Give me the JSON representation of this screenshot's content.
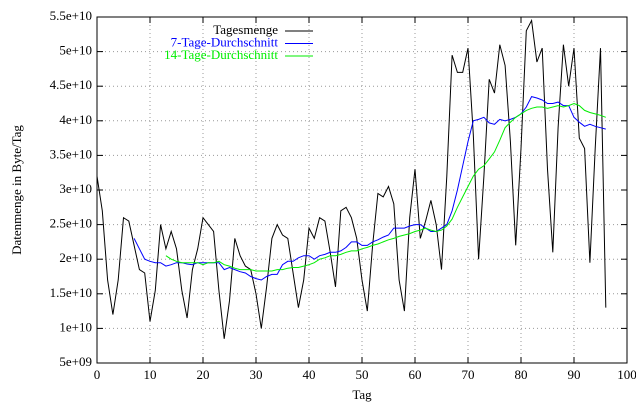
{
  "chart_data": {
    "type": "line",
    "xlabel": "Tag",
    "ylabel": "Datenmenge in Byte/Tag",
    "x": [
      0,
      1,
      2,
      3,
      4,
      5,
      6,
      7,
      8,
      9,
      10,
      11,
      12,
      13,
      14,
      15,
      16,
      17,
      18,
      19,
      20,
      21,
      22,
      23,
      24,
      25,
      26,
      27,
      28,
      29,
      30,
      31,
      32,
      33,
      34,
      35,
      36,
      37,
      38,
      39,
      40,
      41,
      42,
      43,
      44,
      45,
      46,
      47,
      48,
      49,
      50,
      51,
      52,
      53,
      54,
      55,
      56,
      57,
      58,
      59,
      60,
      61,
      62,
      63,
      64,
      65,
      66,
      67,
      68,
      69,
      70,
      71,
      72,
      73,
      74,
      75,
      76,
      77,
      78,
      79,
      80,
      81,
      82,
      83,
      84,
      85,
      86,
      87,
      88,
      89,
      90,
      91,
      92,
      93,
      94,
      95,
      96
    ],
    "series": [
      {
        "name": "Tagesmenge",
        "color": "#000000",
        "values": [
          32000000000.0,
          27000000000.0,
          17000000000.0,
          12000000000.0,
          17000000000.0,
          26000000000.0,
          25500000000.0,
          22000000000.0,
          18500000000.0,
          18000000000.0,
          11000000000.0,
          15500000000.0,
          25000000000.0,
          21500000000.0,
          24000000000.0,
          21500000000.0,
          15500000000.0,
          11500000000.0,
          18500000000.0,
          21500000000.0,
          26000000000.0,
          25000000000.0,
          24000000000.0,
          15500000000.0,
          8500000000.0,
          14000000000.0,
          23000000000.0,
          20500000000.0,
          19000000000.0,
          18500000000.0,
          15000000000.0,
          10000000000.0,
          16000000000.0,
          23000000000.0,
          25000000000.0,
          23500000000.0,
          23000000000.0,
          18000000000.0,
          13000000000.0,
          17000000000.0,
          24500000000.0,
          23000000000.0,
          26000000000.0,
          25500000000.0,
          21000000000.0,
          16000000000.0,
          27000000000.0,
          27500000000.0,
          26000000000.0,
          23000000000.0,
          17000000000.0,
          12500000000.0,
          22000000000.0,
          29500000000.0,
          29000000000.0,
          30500000000.0,
          28000000000.0,
          17000000000.0,
          12500000000.0,
          26000000000.0,
          33000000000.0,
          23000000000.0,
          25500000000.0,
          28500000000.0,
          25000000000.0,
          18500000000.0,
          32000000000.0,
          49500000000.0,
          47000000000.0,
          47000000000.0,
          50500000000.0,
          38000000000.0,
          20000000000.0,
          32000000000.0,
          46000000000.0,
          44000000000.0,
          51000000000.0,
          48000000000.0,
          37000000000.0,
          22000000000.0,
          36000000000.0,
          53000000000.0,
          54500000000.0,
          48500000000.0,
          50500000000.0,
          33000000000.0,
          21000000000.0,
          39000000000.0,
          51000000000.0,
          45000000000.0,
          50500000000.0,
          37500000000.0,
          36000000000.0,
          19500000000.0,
          36000000000.0,
          50500000000.0,
          13000000000.0
        ]
      },
      {
        "name": "7-Tage-Durchschnitt",
        "color": "#0000ff",
        "values": [
          null,
          null,
          null,
          null,
          null,
          null,
          null,
          23000000000.0,
          21500000000.0,
          20000000000.0,
          19700000000.0,
          19500000000.0,
          19500000000.0,
          19000000000.0,
          19200000000.0,
          19500000000.0,
          19500000000.0,
          19300000000.0,
          19200000000.0,
          19500000000.0,
          19500000000.0,
          19500000000.0,
          19500000000.0,
          19500000000.0,
          18500000000.0,
          18800000000.0,
          18500000000.0,
          18200000000.0,
          18000000000.0,
          17500000000.0,
          17200000000.0,
          17000000000.0,
          17500000000.0,
          17800000000.0,
          17800000000.0,
          19200000000.0,
          19700000000.0,
          19700000000.0,
          20200000000.0,
          20500000000.0,
          20500000000.0,
          20000000000.0,
          20500000000.0,
          20700000000.0,
          21000000000.0,
          21000000000.0,
          21200000000.0,
          21700000000.0,
          22500000000.0,
          22500000000.0,
          22000000000.0,
          22000000000.0,
          22500000000.0,
          22800000000.0,
          23200000000.0,
          23500000000.0,
          24500000000.0,
          24500000000.0,
          24500000000.0,
          24800000000.0,
          25000000000.0,
          25000000000.0,
          24500000000.0,
          24000000000.0,
          24000000000.0,
          24500000000.0,
          25000000000.0,
          27000000000.0,
          30000000000.0,
          33500000000.0,
          37000000000.0,
          40000000000.0,
          40200000000.0,
          40500000000.0,
          39700000000.0,
          39500000000.0,
          40200000000.0,
          40000000000.0,
          40200000000.0,
          40500000000.0,
          41000000000.0,
          42000000000.0,
          43500000000.0,
          43300000000.0,
          43000000000.0,
          42500000000.0,
          42500000000.0,
          42700000000.0,
          42200000000.0,
          42200000000.0,
          40500000000.0,
          39800000000.0,
          39200000000.0,
          39500000000.0,
          39200000000.0,
          39000000000.0,
          38800000000.0
        ]
      },
      {
        "name": "14-Tage-Durchschnitt",
        "color": "#00ee00",
        "values": [
          null,
          null,
          null,
          null,
          null,
          null,
          null,
          null,
          null,
          null,
          null,
          null,
          null,
          20500000000.0,
          20000000000.0,
          19700000000.0,
          19500000000.0,
          19500000000.0,
          19500000000.0,
          19500000000.0,
          19200000000.0,
          19500000000.0,
          19500000000.0,
          19700000000.0,
          19200000000.0,
          19000000000.0,
          18700000000.0,
          18500000000.0,
          18500000000.0,
          18500000000.0,
          18300000000.0,
          18300000000.0,
          18300000000.0,
          18300000000.0,
          18500000000.0,
          18500000000.0,
          18700000000.0,
          18800000000.0,
          18800000000.0,
          19000000000.0,
          19200000000.0,
          19500000000.0,
          20000000000.0,
          20200000000.0,
          20500000000.0,
          20500000000.0,
          20700000000.0,
          21000000000.0,
          21200000000.0,
          21200000000.0,
          21500000000.0,
          21700000000.0,
          22000000000.0,
          22200000000.0,
          22500000000.0,
          22800000000.0,
          23000000000.0,
          23300000000.0,
          23500000000.0,
          23700000000.0,
          24000000000.0,
          24200000000.0,
          24500000000.0,
          24200000000.0,
          24000000000.0,
          24200000000.0,
          24800000000.0,
          25800000000.0,
          27500000000.0,
          29000000000.0,
          30500000000.0,
          32000000000.0,
          33000000000.0,
          33500000000.0,
          34500000000.0,
          35500000000.0,
          37200000000.0,
          39000000000.0,
          39800000000.0,
          40500000000.0,
          41000000000.0,
          41500000000.0,
          41800000000.0,
          42000000000.0,
          42000000000.0,
          41800000000.0,
          42000000000.0,
          42200000000.0,
          42000000000.0,
          42200000000.0,
          42500000000.0,
          42200000000.0,
          41500000000.0,
          41200000000.0,
          41000000000.0,
          40800000000.0,
          40500000000.0
        ]
      }
    ],
    "xlim": [
      0,
      100
    ],
    "xticks": [
      0,
      10,
      20,
      30,
      40,
      50,
      60,
      70,
      80,
      90,
      100
    ],
    "ylim": [
      5000000000.0,
      55000000000.0
    ],
    "yticks": [
      {
        "value": 5000000000.0,
        "label": "5e+09"
      },
      {
        "value": 10000000000.0,
        "label": "1e+10"
      },
      {
        "value": 15000000000.0,
        "label": "1.5e+10"
      },
      {
        "value": 20000000000.0,
        "label": "2e+10"
      },
      {
        "value": 25000000000.0,
        "label": "2.5e+10"
      },
      {
        "value": 30000000000.0,
        "label": "3e+10"
      },
      {
        "value": 35000000000.0,
        "label": "3.5e+10"
      },
      {
        "value": 40000000000.0,
        "label": "4e+10"
      },
      {
        "value": 45000000000.0,
        "label": "4.5e+10"
      },
      {
        "value": 50000000000.0,
        "label": "5e+10"
      },
      {
        "value": 55000000000.0,
        "label": "5.5e+10"
      }
    ],
    "grid": true,
    "legend": "top"
  }
}
